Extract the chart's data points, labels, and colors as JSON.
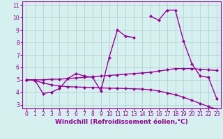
{
  "xlabel": "Windchill (Refroidissement éolien,°C)",
  "x_values": [
    0,
    1,
    2,
    3,
    4,
    5,
    6,
    7,
    8,
    9,
    10,
    11,
    12,
    13,
    14,
    15,
    16,
    17,
    18,
    19,
    20,
    21,
    22,
    23
  ],
  "curve_main": [
    5.0,
    5.0,
    3.9,
    4.0,
    4.3,
    5.1,
    5.5,
    5.3,
    5.2,
    4.1,
    6.8,
    9.0,
    8.5,
    8.4,
    null,
    10.1,
    9.8,
    10.6,
    10.6,
    8.1,
    6.3,
    5.3,
    5.2,
    3.5
  ],
  "curve_trend1": [
    5.0,
    5.0,
    5.0,
    5.05,
    5.05,
    5.1,
    5.15,
    5.2,
    5.25,
    5.3,
    5.35,
    5.4,
    5.45,
    5.5,
    5.55,
    5.6,
    5.7,
    5.8,
    5.9,
    5.9,
    5.9,
    5.85,
    5.8,
    5.75
  ],
  "curve_trend2": [
    5.0,
    4.95,
    4.75,
    4.6,
    4.5,
    4.45,
    4.42,
    4.4,
    4.38,
    4.35,
    4.33,
    4.32,
    4.3,
    4.28,
    4.25,
    4.2,
    4.1,
    3.95,
    3.8,
    3.6,
    3.35,
    3.1,
    2.85,
    2.65
  ],
  "line_color": "#990099",
  "bg_color": "#d6f0f0",
  "grid_color": "#b0cccc",
  "xlim": [
    -0.5,
    23.5
  ],
  "ylim": [
    2.7,
    11.3
  ],
  "yticks": [
    3,
    4,
    5,
    6,
    7,
    8,
    9,
    10,
    11
  ],
  "xticks": [
    0,
    1,
    2,
    3,
    4,
    5,
    6,
    7,
    8,
    9,
    10,
    11,
    12,
    13,
    14,
    15,
    16,
    17,
    18,
    19,
    20,
    21,
    22,
    23
  ],
  "marker": "D",
  "markersize": 2.5,
  "linewidth": 1.0,
  "xlabel_fontsize": 6.5,
  "tick_fontsize": 5.5
}
